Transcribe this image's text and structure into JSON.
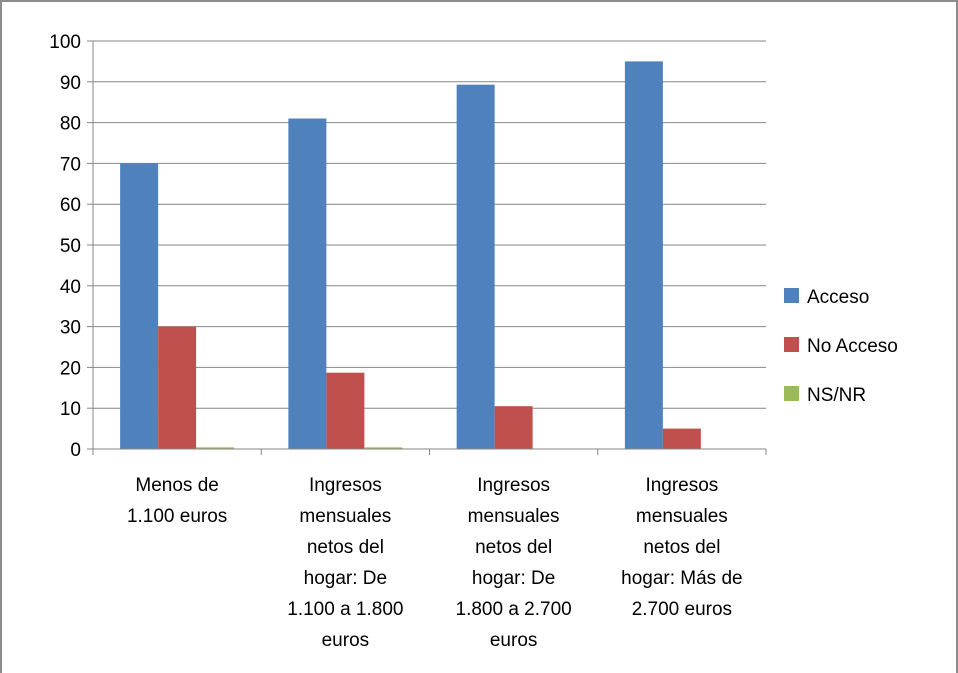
{
  "chart_data": {
    "type": "bar",
    "categories": [
      [
        "Menos de",
        "1.100 euros"
      ],
      [
        "Ingresos",
        "mensuales",
        "netos del",
        "hogar: De",
        "1.100 a 1.800",
        "euros"
      ],
      [
        "Ingresos",
        "mensuales",
        "netos del",
        "hogar: De",
        "1.800 a 2.700",
        "euros"
      ],
      [
        "Ingresos",
        "mensuales",
        "netos del",
        "hogar: Más de",
        "2.700 euros"
      ]
    ],
    "series": [
      {
        "name": "Acceso",
        "color": "#4F81BD",
        "values": [
          70,
          81,
          89.3,
          95
        ]
      },
      {
        "name": "No Acceso",
        "color": "#C0504D",
        "values": [
          30,
          18.7,
          10.5,
          5
        ]
      },
      {
        "name": "NS/NR",
        "color": "#9BBB59",
        "values": [
          0.4,
          0.4,
          0,
          0
        ]
      }
    ],
    "ylim": [
      0,
      100
    ],
    "yticks": [
      "0",
      "10",
      "20",
      "30",
      "40",
      "50",
      "60",
      "70",
      "80",
      "90",
      "100"
    ],
    "grid": true,
    "legend_position": "right"
  }
}
